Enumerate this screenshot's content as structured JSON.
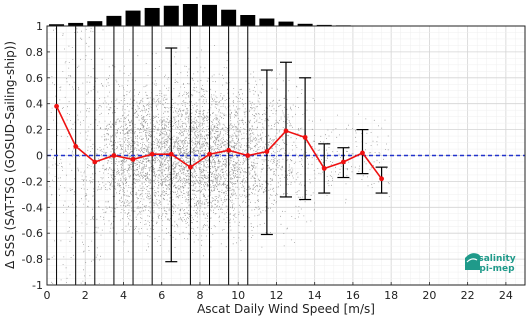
{
  "chart_data": {
    "type": "scatter",
    "xlabel": "Ascat Daily Wind Speed [m/s]",
    "ylabel": "Δ SSS (SAT-TSG (GOSUD-Sailing-ship))",
    "xlim": [
      0,
      25
    ],
    "ylim": [
      -1,
      1
    ],
    "x_ticks": [
      "0",
      "2",
      "4",
      "6",
      "8",
      "10",
      "12",
      "14",
      "16",
      "18",
      "20",
      "22",
      "24"
    ],
    "y_ticks": [
      "-1",
      "-0.8",
      "-0.6",
      "-0.4",
      "-0.2",
      "0",
      "0.2",
      "0.4",
      "0.6",
      "0.8",
      "1"
    ],
    "grid": true,
    "reference_line": {
      "y": 0,
      "style": "dashed",
      "color": "#2233cc"
    },
    "series": [
      {
        "type": "line",
        "color": "#ee1111",
        "x": [
          0.5,
          1.5,
          2.5,
          3.5,
          4.5,
          5.5,
          6.5,
          7.5,
          8.5,
          9.5,
          10.5,
          11.5,
          12.5,
          13.5,
          14.5,
          15.5,
          16.5,
          17.5
        ],
        "values": [
          0.38,
          0.07,
          -0.05,
          0.0,
          -0.03,
          0.01,
          0.01,
          -0.09,
          0.01,
          0.04,
          0.0,
          0.03,
          0.19,
          0.14,
          -0.1,
          -0.05,
          0.02,
          -0.18
        ],
        "error_upper": [
          null,
          null,
          null,
          null,
          null,
          null,
          0.83,
          null,
          null,
          null,
          null,
          0.66,
          0.72,
          0.6,
          0.09,
          0.06,
          0.2,
          -0.09
        ],
        "error_lower": [
          null,
          null,
          null,
          null,
          null,
          null,
          -0.82,
          null,
          null,
          null,
          null,
          -0.61,
          -0.32,
          -0.34,
          -0.29,
          -0.17,
          -0.14,
          -0.29
        ]
      }
    ],
    "histogram_top": {
      "x": [
        0.5,
        1.5,
        2.5,
        3.5,
        4.5,
        5.5,
        6.5,
        7.5,
        8.5,
        9.5,
        10.5,
        11.5,
        12.5,
        13.5,
        14.5,
        15.5,
        16.5,
        17.5
      ],
      "values": [
        0.08,
        0.14,
        0.22,
        0.46,
        0.7,
        0.82,
        0.92,
        1.0,
        0.96,
        0.74,
        0.5,
        0.34,
        0.2,
        0.1,
        0.05,
        0.03,
        0.02,
        0.01
      ]
    },
    "logo_text": "salinity pi-mep"
  },
  "colors": {
    "scatter": "#8c8c8c",
    "line": "#ee1111",
    "errorbar": "#000000",
    "zero_line": "#2233cc",
    "logo": "#1f9a8a"
  }
}
